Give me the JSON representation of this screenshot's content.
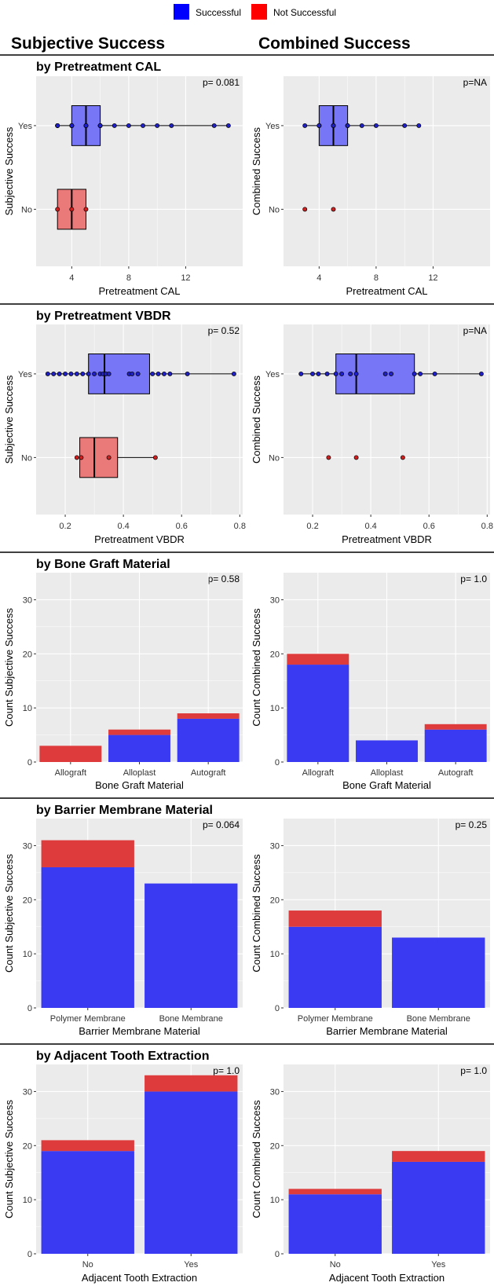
{
  "legend": {
    "items": [
      {
        "label": "Successful",
        "color": "#0000FF"
      },
      {
        "label": "Not Successful",
        "color": "#FF0000"
      }
    ]
  },
  "columns": {
    "left": "Subjective Success",
    "right": "Combined Success"
  },
  "colors": {
    "panel_bg": "#EBEBEB",
    "grid": "#FFFFFF",
    "success_fill": "#7676F7",
    "success_bar": "#3A3AF2",
    "fail_fill": "#EA7A7A",
    "fail_bar": "#DE3C3C",
    "success_point": "#2020C8",
    "fail_point": "#D02020"
  },
  "chart_data": [
    {
      "section": "by Pretreatment CAL",
      "panels": [
        {
          "type": "boxplot",
          "orientation": "horizontal",
          "p_label": "p= 0.081",
          "xlabel": "Pretreatment CAL",
          "ylabel": "Subjective Success",
          "xlim": [
            1.5,
            16
          ],
          "xticks": [
            4,
            8,
            12
          ],
          "xtick_labels": [
            "4",
            "8",
            "12"
          ],
          "categories": [
            "Yes",
            "No"
          ],
          "boxes": [
            {
              "group": "Yes",
              "q1": 4,
              "median": 5,
              "q3": 6,
              "whisker_low": 3,
              "whisker_high": 15,
              "points": [
                3,
                3,
                3,
                3,
                4,
                4,
                4,
                4,
                5,
                5,
                5,
                5,
                5,
                6,
                6,
                6,
                6,
                7,
                8,
                9,
                10,
                11,
                14,
                15
              ]
            },
            {
              "group": "No",
              "q1": 3,
              "median": 4,
              "q3": 5,
              "whisker_low": 3,
              "whisker_high": 5,
              "points": [
                3,
                4,
                5
              ]
            }
          ]
        },
        {
          "type": "boxplot",
          "orientation": "horizontal",
          "p_label": "p=NA",
          "xlabel": "Pretreatment CAL",
          "ylabel": "Combined Success",
          "xlim": [
            1.5,
            16
          ],
          "xticks": [
            4,
            8,
            12
          ],
          "xtick_labels": [
            "4",
            "8",
            "12"
          ],
          "categories": [
            "Yes",
            "No"
          ],
          "boxes": [
            {
              "group": "Yes",
              "q1": 4,
              "median": 5,
              "q3": 6,
              "whisker_low": 3,
              "whisker_high": 11,
              "points": [
                3,
                4,
                4,
                4,
                5,
                5,
                5,
                6,
                6,
                6,
                7,
                8,
                10,
                11
              ]
            },
            {
              "group": "No",
              "points": [
                3,
                5
              ]
            }
          ]
        }
      ]
    },
    {
      "section": "by Pretreatment VBDR",
      "panels": [
        {
          "type": "boxplot",
          "orientation": "horizontal",
          "p_label": "p= 0.52",
          "xlabel": "Pretreatment VBDR",
          "ylabel": "Subjective Success",
          "xlim": [
            0.1,
            0.81
          ],
          "xticks": [
            0.2,
            0.4,
            0.6,
            0.8
          ],
          "xtick_labels": [
            "0.2",
            "0.4",
            "0.6",
            "0.8"
          ],
          "categories": [
            "Yes",
            "No"
          ],
          "boxes": [
            {
              "group": "Yes",
              "q1": 0.28,
              "median": 0.335,
              "q3": 0.49,
              "whisker_low": 0.14,
              "whisker_high": 0.78,
              "points": [
                0.14,
                0.16,
                0.18,
                0.2,
                0.22,
                0.24,
                0.26,
                0.28,
                0.3,
                0.32,
                0.33,
                0.34,
                0.35,
                0.42,
                0.43,
                0.45,
                0.5,
                0.52,
                0.54,
                0.56,
                0.62,
                0.78
              ]
            },
            {
              "group": "No",
              "q1": 0.25,
              "median": 0.3,
              "q3": 0.38,
              "whisker_low": 0.24,
              "whisker_high": 0.51,
              "points": [
                0.24,
                0.255,
                0.35,
                0.51
              ]
            }
          ]
        },
        {
          "type": "boxplot",
          "orientation": "horizontal",
          "p_label": "p=NA",
          "xlabel": "Pretreatment VBDR",
          "ylabel": "Combined Success",
          "xlim": [
            0.1,
            0.81
          ],
          "xticks": [
            0.2,
            0.4,
            0.6,
            0.8
          ],
          "xtick_labels": [
            "0.2",
            "0.4",
            "0.6",
            "0.8"
          ],
          "categories": [
            "Yes",
            "No"
          ],
          "boxes": [
            {
              "group": "Yes",
              "q1": 0.28,
              "median": 0.35,
              "q3": 0.55,
              "whisker_low": 0.16,
              "whisker_high": 0.78,
              "points": [
                0.16,
                0.2,
                0.22,
                0.25,
                0.28,
                0.3,
                0.33,
                0.35,
                0.45,
                0.47,
                0.55,
                0.57,
                0.62,
                0.78
              ]
            },
            {
              "group": "No",
              "points": [
                0.255,
                0.35,
                0.51
              ]
            }
          ]
        }
      ]
    },
    {
      "section": "by Bone Graft Material",
      "panels": [
        {
          "type": "stacked_bar",
          "p_label": "p= 0.58",
          "xlabel": "Bone Graft Material",
          "ylabel": "Count Subjective Success",
          "ylim": [
            0,
            35
          ],
          "yticks": [
            0,
            10,
            20,
            30
          ],
          "categories": [
            "Allograft",
            "Alloplast",
            "Autograft"
          ],
          "series": [
            {
              "name": "Successful",
              "values": [
                0,
                5,
                8
              ]
            },
            {
              "name": "Not Successful",
              "values": [
                3,
                1,
                1
              ]
            }
          ]
        },
        {
          "type": "stacked_bar",
          "p_label": "p= 1.0",
          "xlabel": "Bone Graft Material",
          "ylabel": "Count Combined Success",
          "ylim": [
            0,
            35
          ],
          "yticks": [
            0,
            10,
            20,
            30
          ],
          "categories": [
            "Allograft",
            "Alloplast",
            "Autograft"
          ],
          "series": [
            {
              "name": "Successful",
              "values": [
                18,
                4,
                6
              ]
            },
            {
              "name": "Not Successful",
              "values": [
                2,
                0,
                1
              ]
            }
          ]
        }
      ]
    },
    {
      "section": "by Barrier Membrane Material",
      "panels": [
        {
          "type": "stacked_bar",
          "p_label": "p= 0.064",
          "xlabel": "Barrier Membrane Material",
          "ylabel": "Count Subjective Success",
          "ylim": [
            0,
            35
          ],
          "yticks": [
            0,
            10,
            20,
            30
          ],
          "categories": [
            "Polymer Membrane",
            "Bone Membrane"
          ],
          "series": [
            {
              "name": "Successful",
              "values": [
                26,
                23
              ]
            },
            {
              "name": "Not Successful",
              "values": [
                5,
                0
              ]
            }
          ]
        },
        {
          "type": "stacked_bar",
          "p_label": "p= 0.25",
          "xlabel": "Barrier Membrane Material",
          "ylabel": "Count Combined Success",
          "ylim": [
            0,
            35
          ],
          "yticks": [
            0,
            10,
            20,
            30
          ],
          "categories": [
            "Polymer Membrane",
            "Bone Membrane"
          ],
          "series": [
            {
              "name": "Successful",
              "values": [
                15,
                13
              ]
            },
            {
              "name": "Not Successful",
              "values": [
                3,
                0
              ]
            }
          ]
        }
      ]
    },
    {
      "section": "by Adjacent Tooth Extraction",
      "panels": [
        {
          "type": "stacked_bar",
          "p_label": "p= 1.0",
          "xlabel": "Adjacent Tooth Extraction",
          "ylabel": "Count Subjective Success",
          "ylim": [
            0,
            35
          ],
          "yticks": [
            0,
            10,
            20,
            30
          ],
          "categories": [
            "No",
            "Yes"
          ],
          "series": [
            {
              "name": "Successful",
              "values": [
                19,
                30
              ]
            },
            {
              "name": "Not Successful",
              "values": [
                2,
                3
              ]
            }
          ]
        },
        {
          "type": "stacked_bar",
          "p_label": "p= 1.0",
          "xlabel": "Adjacent Tooth Extraction",
          "ylabel": "Count Combined Success",
          "ylim": [
            0,
            35
          ],
          "yticks": [
            0,
            10,
            20,
            30
          ],
          "categories": [
            "No",
            "Yes"
          ],
          "series": [
            {
              "name": "Successful",
              "values": [
                11,
                17
              ]
            },
            {
              "name": "Not Successful",
              "values": [
                1,
                2
              ]
            }
          ]
        }
      ]
    }
  ]
}
